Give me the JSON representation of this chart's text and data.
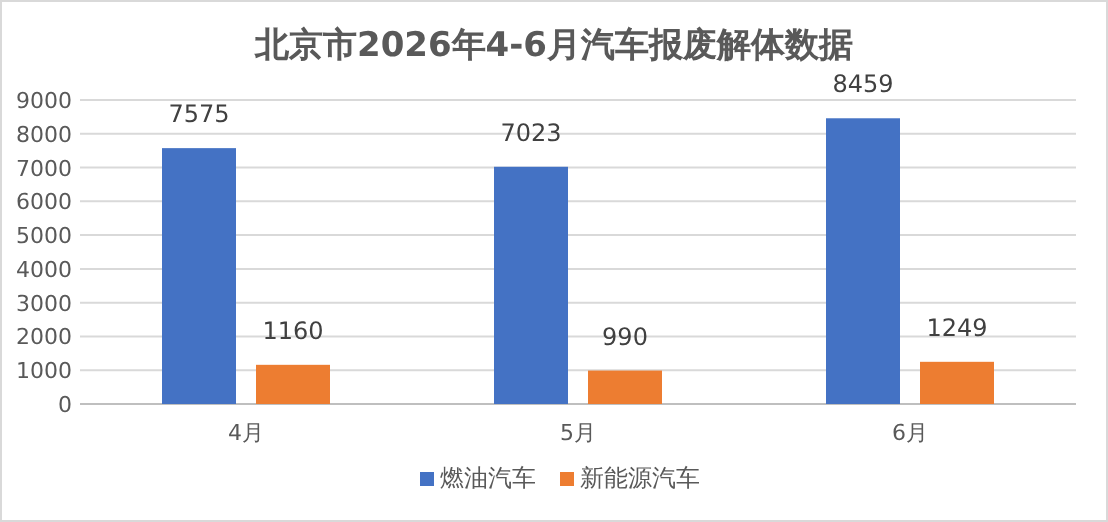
{
  "chart_data": {
    "type": "bar",
    "title": "北京市2026年4-6月汽车报废解体数据",
    "categories": [
      "4月",
      "5月",
      "6月"
    ],
    "series": [
      {
        "name": "燃油汽车",
        "color": "#4472c4",
        "values": [
          7575,
          7023,
          8459
        ]
      },
      {
        "name": "新能源汽车",
        "color": "#ed7d31",
        "values": [
          1160,
          990,
          1249
        ]
      }
    ],
    "ylim": [
      0,
      9000
    ],
    "yticks": [
      0,
      1000,
      2000,
      3000,
      4000,
      5000,
      6000,
      7000,
      8000,
      9000
    ],
    "grid": "y",
    "legend": "bottom",
    "data_labels": true
  }
}
